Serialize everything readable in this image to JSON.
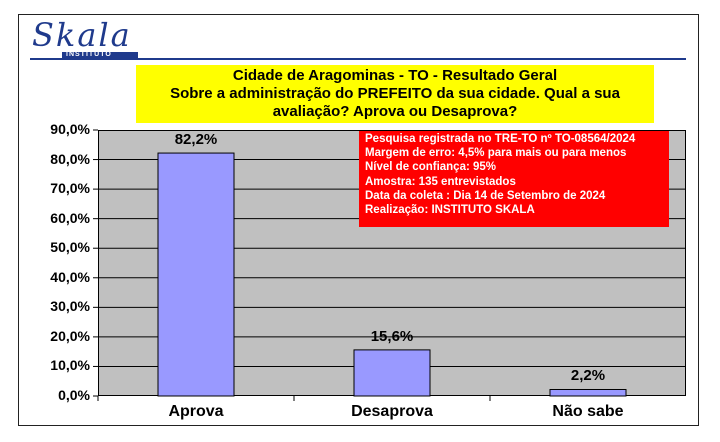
{
  "logo": {
    "name": "Skala",
    "sub": "INSTITUTO"
  },
  "title": {
    "line1": "Cidade de Aragominas - TO - Resultado Geral",
    "line2": "Sobre a administração do PREFEITO da sua cidade. Qual a sua",
    "line3": "avaliação? Aprova ou Desaprova?"
  },
  "info": [
    "Pesquisa registrada no TRE-TO nº TO-08564/2024",
    "Margem de erro: 4,5% para mais ou para menos",
    "Nível de confiança: 95%",
    "Amostra: 135 entrevistados",
    "Data da coleta : Dia 14 de Setembro de 2024",
    "Realização: INSTITUTO SKALA"
  ],
  "colors": {
    "bar": "#9999ff",
    "plot_bg": "#c0c0c0",
    "title_bg": "#ffff00",
    "info_bg": "#ff0000",
    "logo": "#1f3a8c"
  },
  "chart_data": {
    "type": "bar",
    "categories": [
      "Aprova",
      "Desaprova",
      "Não sabe"
    ],
    "values": [
      82.2,
      15.6,
      2.2
    ],
    "data_labels": [
      "82,2%",
      "15,6%",
      "2,2%"
    ],
    "title": "Cidade de Aragominas - TO - Resultado Geral",
    "ylim": [
      0,
      90
    ],
    "yticks": [
      0,
      10,
      20,
      30,
      40,
      50,
      60,
      70,
      80,
      90
    ],
    "ytick_labels": [
      "0,0%",
      "10,0%",
      "20,0%",
      "30,0%",
      "40,0%",
      "50,0%",
      "60,0%",
      "70,0%",
      "80,0%",
      "90,0%"
    ],
    "grid": true,
    "legend": "none"
  }
}
